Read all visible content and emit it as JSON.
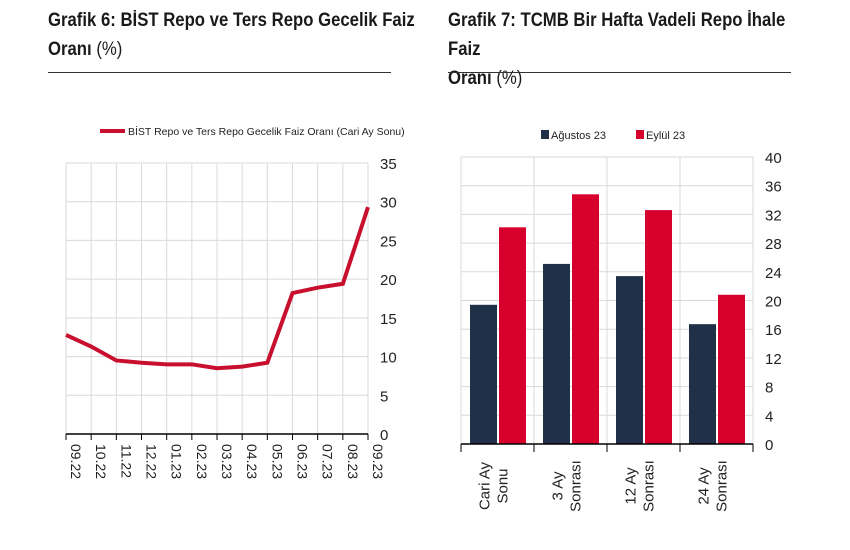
{
  "chart_data": [
    {
      "type": "line",
      "title": "Grafik 6:  BİST Repo ve Ters Repo Gecelik Faiz",
      "title_line2": "Oranı",
      "unit": "(%)",
      "categories": [
        "09.22",
        "10.22",
        "11.22",
        "12.22",
        "01.23",
        "02.23",
        "03.23",
        "04.23",
        "05.23",
        "06.23",
        "07.23",
        "08.23",
        "09.23"
      ],
      "series": [
        {
          "name": "BİST Repo ve Ters Repo Gecelik Faiz Oranı (Cari Ay Sonu)",
          "values": [
            12.8,
            11.3,
            9.5,
            9.2,
            9.0,
            9.0,
            8.5,
            8.7,
            9.2,
            18.2,
            18.9,
            19.4,
            29.3
          ],
          "color": "#c8102e"
        }
      ],
      "ylim": [
        0,
        35
      ],
      "yticks": [
        0,
        5,
        10,
        15,
        20,
        25,
        30,
        35
      ],
      "grid": true,
      "legend": "top",
      "yaxis": "right"
    },
    {
      "type": "bar",
      "title": "Grafik 7: TCMB Bir Hafta Vadeli Repo İhale Faiz",
      "title_line2": "Oranı",
      "unit": "(%)",
      "categories": [
        [
          "Cari Ay",
          "Sonu"
        ],
        [
          "3 Ay",
          "Sonrası"
        ],
        [
          "12 Ay",
          "Sonrası"
        ],
        [
          "24 Ay",
          "Sonrası"
        ]
      ],
      "series": [
        {
          "name": "Ağustos 23",
          "values": [
            19.4,
            25.1,
            23.4,
            16.7
          ],
          "color": "#1f3048"
        },
        {
          "name": "Eylül 23",
          "values": [
            30.2,
            34.8,
            32.6,
            20.8
          ],
          "color": "#d7002d"
        }
      ],
      "ylim": [
        0,
        40
      ],
      "yticks": [
        0,
        4,
        8,
        12,
        16,
        20,
        24,
        28,
        32,
        36,
        40
      ],
      "grid": true,
      "legend": "top",
      "yaxis": "right"
    }
  ]
}
